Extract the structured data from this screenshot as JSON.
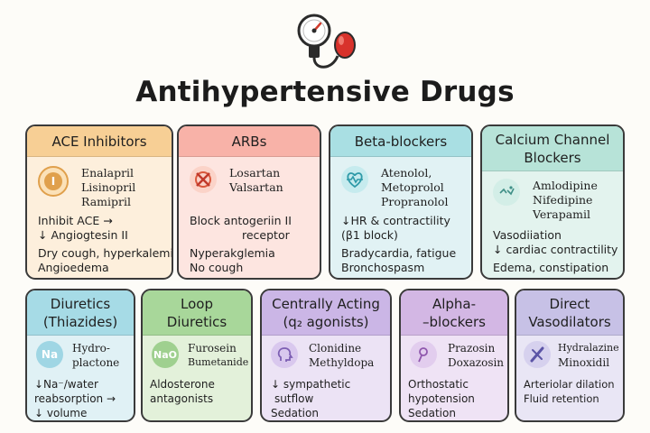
{
  "title": "Antihypertensive Drugs",
  "header_icon": "blood-pressure-gauge-icon",
  "cards": [
    {
      "title": "ACE Inhibitors",
      "icon": "pill-icon",
      "icon_text": "I",
      "head_color": "#f7cf95",
      "body_color": "#fdefdc",
      "icon_color": "#e0a04c",
      "drugs": [
        "Enalapril",
        "Lisinopril",
        "Ramipril"
      ],
      "mechanism": [
        "Inhibit ACE →",
        "↓ Angiogtesin II"
      ],
      "effects": [
        "Dry cough, hyperkalemia",
        "Angioedema"
      ]
    },
    {
      "title": "ARBs",
      "icon": "blocked-receptor-icon",
      "head_color": "#f8b2a8",
      "body_color": "#fde5e0",
      "icon_color": "#d9583d",
      "drugs": [
        "Losartan",
        "Valsartan"
      ],
      "mechanism": [
        "Block antogeriin II",
        "receptor"
      ],
      "effects": [
        "Nyperakglemia",
        "No cough"
      ]
    },
    {
      "title": "Beta-blockers",
      "icon": "heart-rate-icon",
      "head_color": "#a9dfe3",
      "body_color": "#e1f2f4",
      "icon_color": "#2f9aa8",
      "drugs": [
        "Atenolol,",
        "Metoprolol",
        "Propranolol"
      ],
      "mechanism": [
        "↓HR & contractility",
        "(β1 block)"
      ],
      "effects": [
        "Bradycardia, fatigue",
        "Bronchospasm"
      ]
    },
    {
      "title": "Calcium Channel Blockers",
      "title_lines": [
        "Calcium Channel",
        "Blockers"
      ],
      "icon": "calcium-channel-icon",
      "head_color": "#b7e3d8",
      "body_color": "#e3f3ee",
      "icon_color": "#3f8f87",
      "drugs": [
        "Amlodipine",
        "Nifedipine",
        "Verapamil"
      ],
      "mechanism": [
        "Vasodiiation",
        "↓ cardiac contractility"
      ],
      "effects": [
        "Edema, constipation"
      ]
    },
    {
      "title": "Diuretics (Thiazides)",
      "title_lines": [
        "Diuretics",
        "(Thiazides)"
      ],
      "icon": "sodium-icon",
      "icon_text": "Na",
      "head_color": "#a6dbe6",
      "body_color": "#e0f1f5",
      "icon_color": "#2e96b0",
      "drugs": [
        "Hydro-",
        "plactone"
      ],
      "mechanism": [
        "↓Na⁻/water",
        "reabsorption →",
        "↓ volume"
      ]
    },
    {
      "title": "Loop Diuretics",
      "title_lines": [
        "Loop",
        "Diuretics"
      ],
      "icon": "salt-icon",
      "icon_text": "NaO",
      "head_color": "#a8d79a",
      "body_color": "#e3f1da",
      "icon_color": "#4f9a3f",
      "drugs": [
        "Furosein",
        "Bumetanide"
      ],
      "mechanism": [
        "Aldosterone",
        "antagonists"
      ]
    },
    {
      "title": "Centrally Acting (q₂ agonists)",
      "title_lines": [
        "Centrally Acting",
        "(q₂ agonists)"
      ],
      "icon": "brain-head-icon",
      "head_color": "#cbb6e6",
      "body_color": "#ece3f5",
      "icon_color": "#7d5fb3",
      "drugs": [
        "Clonidine",
        "Methyldopa"
      ],
      "mechanism": [
        "↓ sympathetic",
        "sutflow",
        "Sedation"
      ]
    },
    {
      "title": "Alpha--blockers",
      "title_lines": [
        "Alpha-",
        "–blockers"
      ],
      "icon": "alpha-receptor-icon",
      "head_color": "#d3b7e4",
      "body_color": "#efe3f5",
      "icon_color": "#8f57ad",
      "drugs": [
        "Prazosin",
        "Doxazosin"
      ],
      "mechanism": [
        "Orthostatic",
        "hypotension",
        "Sedation"
      ]
    },
    {
      "title": "Direct Vasodilators",
      "title_lines": [
        "Direct",
        "Vasodilators"
      ],
      "icon": "vessel-icon",
      "head_color": "#c7c1e6",
      "body_color": "#e9e6f5",
      "icon_color": "#5b54a6",
      "drugs": [
        "Hydralazine",
        "Minoxidil"
      ],
      "mechanism": [
        "Arteriolar dilation",
        "Fluid retention"
      ]
    }
  ]
}
